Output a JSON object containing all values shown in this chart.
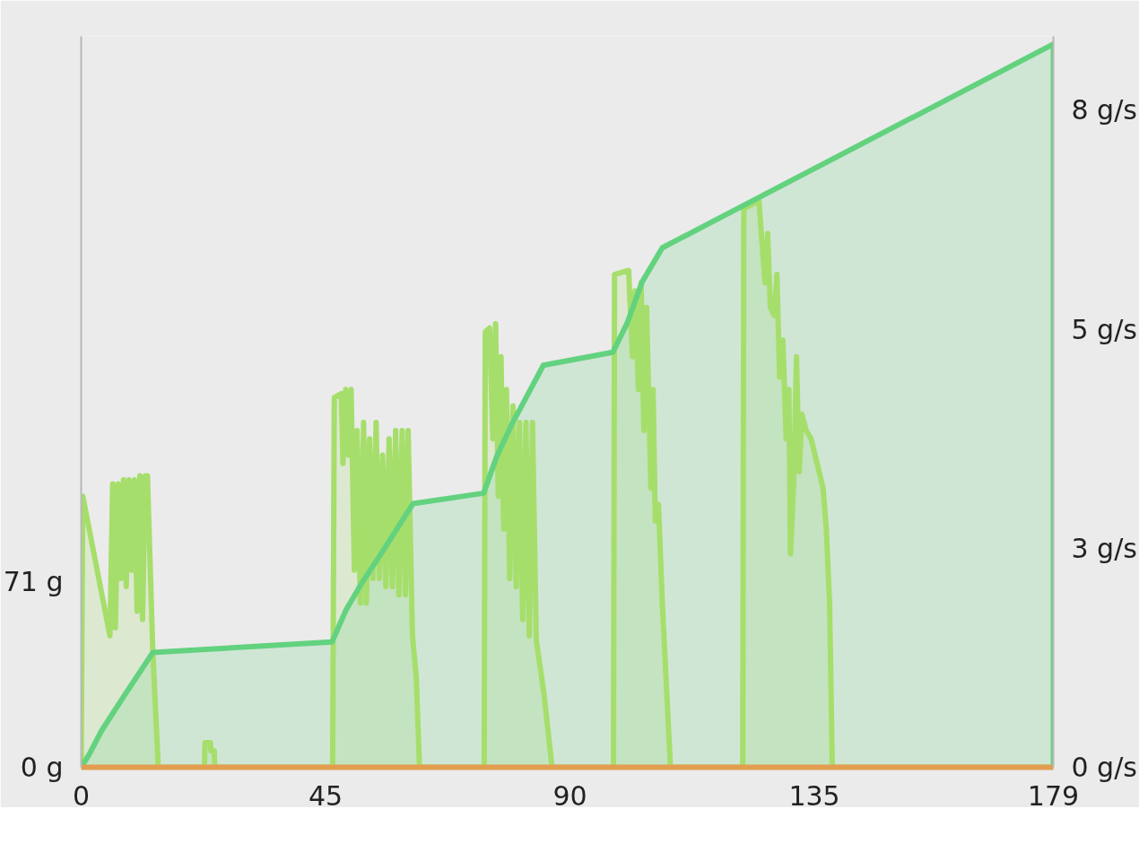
{
  "chart_data": {
    "type": "area",
    "xlim": [
      0,
      179
    ],
    "xticks": [
      0,
      45,
      90,
      135,
      179
    ],
    "ylim": [
      0,
      280
    ],
    "yticks": [
      {
        "value": 0,
        "label": "0 g"
      },
      {
        "value": 71,
        "label": "71 g"
      }
    ],
    "y2lim": [
      0,
      8.9
    ],
    "y2ticks": [
      {
        "value": 0,
        "label": "0 g/s"
      },
      {
        "value": 2.67,
        "label": "3 g/s"
      },
      {
        "value": 5.33,
        "label": "5 g/s"
      },
      {
        "value": 8,
        "label": "8 g/s"
      }
    ],
    "series": [
      {
        "color": "#a6de6b",
        "axis": "y2",
        "x": [
          0,
          0.3,
          5.3,
          5.8,
          6.3,
          6.8,
          7.3,
          7.8,
          8.3,
          8.8,
          9.3,
          9.8,
          10.3,
          10.8,
          11.3,
          11.8,
          12.2,
          13.2,
          14.2,
          22.7,
          22.8,
          23.8,
          23.9,
          24.5,
          24.6,
          46.3,
          46.6,
          47.9,
          48.2,
          48.7,
          49.2,
          49.7,
          50.3,
          50.8,
          51.4,
          52.0,
          52.5,
          53.1,
          53.7,
          54.3,
          54.9,
          55.5,
          56.1,
          56.7,
          57.3,
          57.9,
          58.5,
          59.1,
          59.7,
          60.2,
          61.0,
          61.7,
          62.3,
          74.2,
          74.4,
          75.2,
          75.8,
          76.3,
          76.8,
          77.3,
          77.8,
          78.3,
          78.9,
          79.5,
          80.1,
          80.7,
          81.3,
          81.9,
          82.5,
          83.1,
          83.8,
          85.2,
          86.7,
          98.0,
          98.2,
          100.8,
          101.5,
          102.0,
          102.6,
          103.1,
          103.6,
          104.1,
          104.9,
          105.3,
          105.7,
          106.3,
          107.0,
          108.5,
          121.8,
          122.0,
          124.8,
          125.9,
          126.4,
          126.9,
          127.6,
          128.1,
          128.6,
          129.2,
          129.8,
          130.3,
          130.6,
          131.2,
          131.7,
          132.2,
          132.7,
          133.5,
          134.4,
          135.5,
          136.6,
          137.2,
          137.8,
          138.3,
          179
        ],
        "values": [
          0,
          3.3,
          1.6,
          3.45,
          1.7,
          3.45,
          2.3,
          3.5,
          2.2,
          3.5,
          2.4,
          3.5,
          1.9,
          3.55,
          1.8,
          3.55,
          3.55,
          1.4,
          0,
          0,
          0.3,
          0.3,
          0.2,
          0.2,
          0,
          0,
          4.5,
          4.55,
          3.7,
          4.6,
          3.8,
          4.6,
          2.4,
          4.1,
          2.0,
          4.2,
          2.0,
          4.0,
          2.3,
          4.2,
          2.3,
          3.8,
          2.2,
          4.0,
          2.2,
          4.1,
          2.1,
          4.1,
          2.1,
          4.1,
          1.6,
          1.1,
          0,
          0,
          5.3,
          5.35,
          4.0,
          5.4,
          3.3,
          5.0,
          2.9,
          4.6,
          2.3,
          4.4,
          2.2,
          4.2,
          1.8,
          4.2,
          1.6,
          4.2,
          1.55,
          0.9,
          0,
          0,
          6.0,
          6.05,
          5.0,
          5.8,
          4.6,
          5.9,
          4.1,
          5.6,
          3.4,
          4.6,
          3.0,
          3.2,
          2.0,
          0,
          0,
          6.8,
          6.9,
          5.9,
          6.5,
          5.6,
          5.5,
          6.0,
          4.75,
          5.2,
          4.0,
          4.6,
          2.6,
          3.5,
          5.0,
          3.6,
          4.3,
          4.1,
          4.0,
          3.7,
          3.4,
          2.9,
          2.0,
          0,
          0
        ]
      },
      {
        "color": "#63d27f",
        "axis": "y",
        "x": [
          0,
          1.5,
          3.75,
          7.8,
          13.2,
          46.2,
          48.7,
          51.8,
          55.6,
          61.1,
          74.1,
          76.5,
          79.2,
          82.8,
          85.1,
          97.9,
          100.5,
          103.3,
          107,
          179,
          179
        ],
        "values": [
          0,
          5,
          14,
          27,
          44,
          48,
          60,
          71,
          83,
          101,
          105,
          119,
          131,
          145,
          154,
          159,
          170,
          186,
          199,
          277,
          0
        ]
      }
    ]
  }
}
